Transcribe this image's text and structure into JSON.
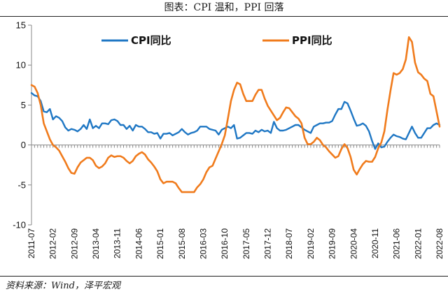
{
  "header": {
    "title": "图表：CPI 温和，PPI 回落"
  },
  "footer": {
    "source": "资料来源：Wind，泽平宏观"
  },
  "chart_data": {
    "type": "line",
    "title": "图表：CPI 温和，PPI 回落",
    "xlabel": "",
    "ylabel": "",
    "ylim": [
      -10,
      15
    ],
    "yticks": [
      -10,
      -5,
      0,
      5,
      10,
      15
    ],
    "xticks": [
      "2011-07",
      "2012-02",
      "2012-09",
      "2013-04",
      "2013-11",
      "2014-06",
      "2015-01",
      "2015-08",
      "2016-03",
      "2016-10",
      "2017-05",
      "2017-12",
      "2018-07",
      "2019-02",
      "2019-09",
      "2020-04",
      "2020-11",
      "2021-06",
      "2022-01",
      "2022-08"
    ],
    "legend": {
      "position": "top",
      "entries": [
        "CPI同比",
        "PPI同比"
      ]
    },
    "series": [
      {
        "name": "CPI同比",
        "color": "#1f77c4",
        "x": [
          "2011-07",
          "2011-08",
          "2011-09",
          "2011-10",
          "2011-11",
          "2011-12",
          "2012-01",
          "2012-02",
          "2012-03",
          "2012-04",
          "2012-05",
          "2012-06",
          "2012-07",
          "2012-08",
          "2012-09",
          "2012-10",
          "2012-11",
          "2012-12",
          "2013-01",
          "2013-02",
          "2013-03",
          "2013-04",
          "2013-05",
          "2013-06",
          "2013-07",
          "2013-08",
          "2013-09",
          "2013-10",
          "2013-11",
          "2013-12",
          "2014-01",
          "2014-02",
          "2014-03",
          "2014-04",
          "2014-05",
          "2014-06",
          "2014-07",
          "2014-08",
          "2014-09",
          "2014-10",
          "2014-11",
          "2014-12",
          "2015-01",
          "2015-02",
          "2015-03",
          "2015-04",
          "2015-05",
          "2015-06",
          "2015-07",
          "2015-08",
          "2015-09",
          "2015-10",
          "2015-11",
          "2015-12",
          "2016-01",
          "2016-02",
          "2016-03",
          "2016-04",
          "2016-05",
          "2016-06",
          "2016-07",
          "2016-08",
          "2016-09",
          "2016-10",
          "2016-11",
          "2016-12",
          "2017-01",
          "2017-02",
          "2017-03",
          "2017-04",
          "2017-05",
          "2017-06",
          "2017-07",
          "2017-08",
          "2017-09",
          "2017-10",
          "2017-11",
          "2017-12",
          "2018-01",
          "2018-02",
          "2018-03",
          "2018-04",
          "2018-05",
          "2018-06",
          "2018-07",
          "2018-08",
          "2018-09",
          "2018-10",
          "2018-11",
          "2018-12",
          "2019-01",
          "2019-02",
          "2019-03",
          "2019-04",
          "2019-05",
          "2019-06",
          "2019-07",
          "2019-08",
          "2019-09",
          "2019-10",
          "2019-11",
          "2019-12",
          "2020-01",
          "2020-02",
          "2020-03",
          "2020-04",
          "2020-05",
          "2020-06",
          "2020-07",
          "2020-08",
          "2020-09",
          "2020-10",
          "2020-11",
          "2020-12",
          "2021-01",
          "2021-02",
          "2021-03",
          "2021-04",
          "2021-05",
          "2021-06",
          "2021-07",
          "2021-08",
          "2021-09",
          "2021-10",
          "2021-11",
          "2021-12",
          "2022-01",
          "2022-02",
          "2022-03",
          "2022-04",
          "2022-05",
          "2022-06",
          "2022-07",
          "2022-08"
        ],
        "values": [
          6.5,
          6.2,
          6.1,
          5.5,
          4.2,
          4.1,
          4.5,
          3.2,
          3.6,
          3.4,
          3.0,
          2.2,
          1.8,
          2.0,
          1.9,
          1.7,
          2.0,
          2.5,
          2.0,
          3.2,
          2.1,
          2.4,
          2.1,
          2.7,
          2.7,
          2.6,
          3.1,
          3.2,
          3.0,
          2.5,
          2.5,
          2.0,
          2.4,
          1.8,
          2.5,
          2.3,
          2.3,
          2.0,
          1.6,
          1.6,
          1.4,
          1.5,
          0.8,
          1.4,
          1.4,
          1.5,
          1.2,
          1.4,
          1.6,
          2.0,
          1.6,
          1.3,
          1.5,
          1.6,
          1.8,
          2.3,
          2.3,
          2.3,
          2.0,
          1.9,
          1.8,
          1.3,
          1.9,
          2.1,
          2.3,
          2.1,
          2.5,
          0.8,
          0.9,
          1.2,
          1.5,
          1.5,
          1.4,
          1.8,
          1.6,
          1.9,
          1.7,
          1.8,
          1.5,
          2.9,
          2.1,
          1.8,
          1.8,
          1.9,
          2.1,
          2.3,
          2.5,
          2.5,
          2.2,
          1.9,
          1.7,
          1.5,
          2.3,
          2.5,
          2.7,
          2.7,
          2.8,
          2.8,
          3.0,
          3.8,
          4.5,
          4.5,
          5.4,
          5.2,
          4.3,
          3.3,
          2.4,
          2.5,
          2.7,
          2.4,
          1.7,
          0.5,
          -0.5,
          0.2,
          -0.3,
          -0.2,
          0.4,
          0.9,
          1.3,
          1.1,
          1.0,
          0.8,
          0.7,
          1.5,
          2.3,
          1.5,
          0.9,
          0.9,
          1.5,
          2.1,
          2.1,
          2.5,
          2.7,
          2.5
        ]
      },
      {
        "name": "PPI同比",
        "color": "#f07b1c",
        "x": [
          "2011-07",
          "2011-08",
          "2011-09",
          "2011-10",
          "2011-11",
          "2011-12",
          "2012-01",
          "2012-02",
          "2012-03",
          "2012-04",
          "2012-05",
          "2012-06",
          "2012-07",
          "2012-08",
          "2012-09",
          "2012-10",
          "2012-11",
          "2012-12",
          "2013-01",
          "2013-02",
          "2013-03",
          "2013-04",
          "2013-05",
          "2013-06",
          "2013-07",
          "2013-08",
          "2013-09",
          "2013-10",
          "2013-11",
          "2013-12",
          "2014-01",
          "2014-02",
          "2014-03",
          "2014-04",
          "2014-05",
          "2014-06",
          "2014-07",
          "2014-08",
          "2014-09",
          "2014-10",
          "2014-11",
          "2014-12",
          "2015-01",
          "2015-02",
          "2015-03",
          "2015-04",
          "2015-05",
          "2015-06",
          "2015-07",
          "2015-08",
          "2015-09",
          "2015-10",
          "2015-11",
          "2015-12",
          "2016-01",
          "2016-02",
          "2016-03",
          "2016-04",
          "2016-05",
          "2016-06",
          "2016-07",
          "2016-08",
          "2016-09",
          "2016-10",
          "2016-11",
          "2016-12",
          "2017-01",
          "2017-02",
          "2017-03",
          "2017-04",
          "2017-05",
          "2017-06",
          "2017-07",
          "2017-08",
          "2017-09",
          "2017-10",
          "2017-11",
          "2017-12",
          "2018-01",
          "2018-02",
          "2018-03",
          "2018-04",
          "2018-05",
          "2018-06",
          "2018-07",
          "2018-08",
          "2018-09",
          "2018-10",
          "2018-11",
          "2018-12",
          "2019-01",
          "2019-02",
          "2019-03",
          "2019-04",
          "2019-05",
          "2019-06",
          "2019-07",
          "2019-08",
          "2019-09",
          "2019-10",
          "2019-11",
          "2019-12",
          "2020-01",
          "2020-02",
          "2020-03",
          "2020-04",
          "2020-05",
          "2020-06",
          "2020-07",
          "2020-08",
          "2020-09",
          "2020-10",
          "2020-11",
          "2020-12",
          "2021-01",
          "2021-02",
          "2021-03",
          "2021-04",
          "2021-05",
          "2021-06",
          "2021-07",
          "2021-08",
          "2021-09",
          "2021-10",
          "2021-11",
          "2021-12",
          "2022-01",
          "2022-02",
          "2022-03",
          "2022-04",
          "2022-05",
          "2022-06",
          "2022-07",
          "2022-08"
        ],
        "values": [
          7.5,
          7.3,
          6.5,
          5.0,
          2.7,
          1.7,
          0.7,
          0.0,
          -0.3,
          -0.7,
          -1.4,
          -2.1,
          -2.9,
          -3.5,
          -3.6,
          -2.8,
          -2.2,
          -1.9,
          -1.6,
          -1.6,
          -1.9,
          -2.6,
          -2.9,
          -2.7,
          -2.3,
          -1.6,
          -1.3,
          -1.5,
          -1.4,
          -1.4,
          -1.6,
          -2.0,
          -2.3,
          -2.0,
          -1.4,
          -1.1,
          -0.9,
          -1.2,
          -1.8,
          -2.2,
          -2.7,
          -3.3,
          -4.3,
          -4.8,
          -4.6,
          -4.6,
          -4.6,
          -4.8,
          -5.4,
          -5.9,
          -5.9,
          -5.9,
          -5.9,
          -5.9,
          -5.3,
          -4.9,
          -4.3,
          -3.4,
          -2.8,
          -2.6,
          -1.7,
          -0.8,
          0.1,
          1.2,
          3.3,
          5.5,
          6.9,
          7.8,
          7.6,
          6.4,
          5.5,
          5.5,
          5.5,
          6.3,
          6.9,
          6.9,
          5.8,
          4.9,
          4.3,
          3.7,
          3.1,
          3.4,
          4.1,
          4.7,
          4.6,
          4.1,
          3.6,
          3.3,
          2.7,
          0.9,
          0.1,
          0.1,
          0.4,
          0.9,
          0.6,
          0.0,
          -0.3,
          -0.8,
          -1.2,
          -1.6,
          -1.4,
          -0.5,
          0.1,
          -0.4,
          -1.5,
          -3.1,
          -3.7,
          -3.0,
          -2.4,
          -2.0,
          -2.1,
          -2.1,
          -1.5,
          -0.4,
          0.3,
          1.7,
          4.4,
          6.8,
          9.0,
          8.8,
          9.0,
          9.5,
          10.7,
          13.5,
          12.9,
          10.3,
          9.1,
          8.8,
          8.3,
          8.0,
          6.4,
          6.1,
          4.2,
          2.3
        ]
      }
    ]
  }
}
